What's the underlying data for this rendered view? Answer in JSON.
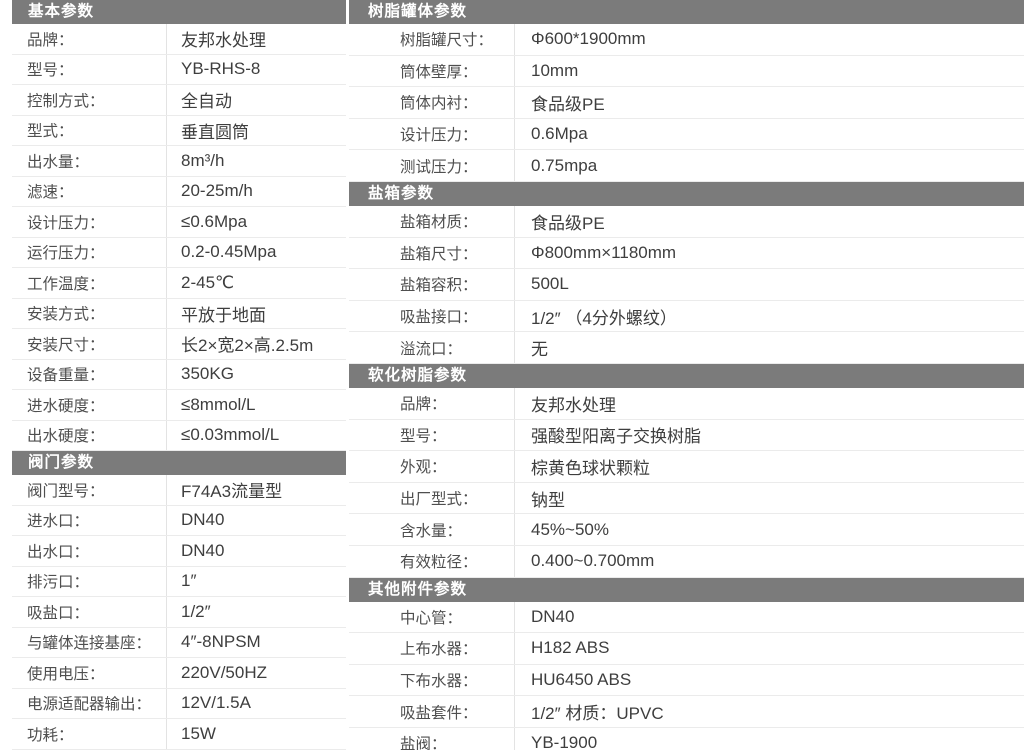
{
  "palette": {
    "page_bg": "#ffffff",
    "header_bg": "#7b7b7b",
    "header_text": "#ffffff",
    "label_text": "#4f4f4f",
    "value_text": "#3e3e3e",
    "row_border": "#ebebeb",
    "cell_divider": "#e3e3e3"
  },
  "left_column": {
    "sections": [
      {
        "title": "基本参数",
        "rows": [
          {
            "label": "品牌：",
            "value": "友邦水处理"
          },
          {
            "label": "型号：",
            "value": "YB-RHS-8"
          },
          {
            "label": "控制方式：",
            "value": "全自动"
          },
          {
            "label": "型式：",
            "value": "垂直圆筒"
          },
          {
            "label": "出水量：",
            "value": "8m³/h"
          },
          {
            "label": "滤速：",
            "value": "20-25m/h"
          },
          {
            "label": "设计压力：",
            "value": "≤0.6Mpa"
          },
          {
            "label": "运行压力：",
            "value": "0.2-0.45Mpa"
          },
          {
            "label": "工作温度：",
            "value": "2-45℃"
          },
          {
            "label": "安装方式：",
            "value": "平放于地面"
          },
          {
            "label": "安装尺寸：",
            "value": "长2×宽2×高.2.5m"
          },
          {
            "label": "设备重量：",
            "value": "350KG"
          },
          {
            "label": "进水硬度：",
            "value": "≤8mmol/L"
          },
          {
            "label": "出水硬度：",
            "value": "≤0.03mmol/L"
          }
        ]
      },
      {
        "title": "阀门参数",
        "rows": [
          {
            "label": "阀门型号：",
            "value": "F74A3流量型"
          },
          {
            "label": "进水口：",
            "value": "DN40"
          },
          {
            "label": "出水口：",
            "value": "DN40"
          },
          {
            "label": "排污口：",
            "value": "1″"
          },
          {
            "label": "吸盐口：",
            "value": "1/2″"
          },
          {
            "label": "与罐体连接基座：",
            "value": "4″-8NPSM"
          },
          {
            "label": "使用电压：",
            "value": "220V/50HZ"
          },
          {
            "label": "电源适配器输出：",
            "value": "12V/1.5A"
          },
          {
            "label": "功耗：",
            "value": "15W"
          }
        ]
      }
    ]
  },
  "right_column": {
    "sections": [
      {
        "title": "树脂罐体参数",
        "rows": [
          {
            "label": "树脂罐尺寸：",
            "value": "Φ600*1900mm"
          },
          {
            "label": "筒体壁厚：",
            "value": "10mm"
          },
          {
            "label": "筒体内衬：",
            "value": "食品级PE"
          },
          {
            "label": "设计压力：",
            "value": "0.6Mpa"
          },
          {
            "label": "测试压力：",
            "value": "0.75mpa"
          }
        ]
      },
      {
        "title": "盐箱参数",
        "rows": [
          {
            "label": "盐箱材质：",
            "value": "食品级PE"
          },
          {
            "label": "盐箱尺寸：",
            "value": "Φ800mm×1180mm"
          },
          {
            "label": "盐箱容积：",
            "value": "500L"
          },
          {
            "label": "吸盐接口：",
            "value": "1/2″ （4分外螺纹）"
          },
          {
            "label": "溢流口：",
            "value": "无"
          }
        ]
      },
      {
        "title": "软化树脂参数",
        "rows": [
          {
            "label": "品牌：",
            "value": "友邦水处理"
          },
          {
            "label": "型号：",
            "value": "强酸型阳离子交换树脂"
          },
          {
            "label": "外观：",
            "value": "棕黄色球状颗粒"
          },
          {
            "label": "出厂型式：",
            "value": "钠型"
          },
          {
            "label": "含水量：",
            "value": "45%~50%"
          },
          {
            "label": "有效粒径：",
            "value": "0.400~0.700mm"
          }
        ]
      },
      {
        "title": "其他附件参数",
        "rows": [
          {
            "label": "中心管：",
            "value": "DN40"
          },
          {
            "label": "上布水器：",
            "value": "H182  ABS"
          },
          {
            "label": "下布水器：",
            "value": "HU6450  ABS"
          },
          {
            "label": "吸盐套件：",
            "value": "1/2″ 材质：UPVC"
          },
          {
            "label": "盐阀：",
            "value": "YB-1900"
          }
        ]
      }
    ]
  }
}
